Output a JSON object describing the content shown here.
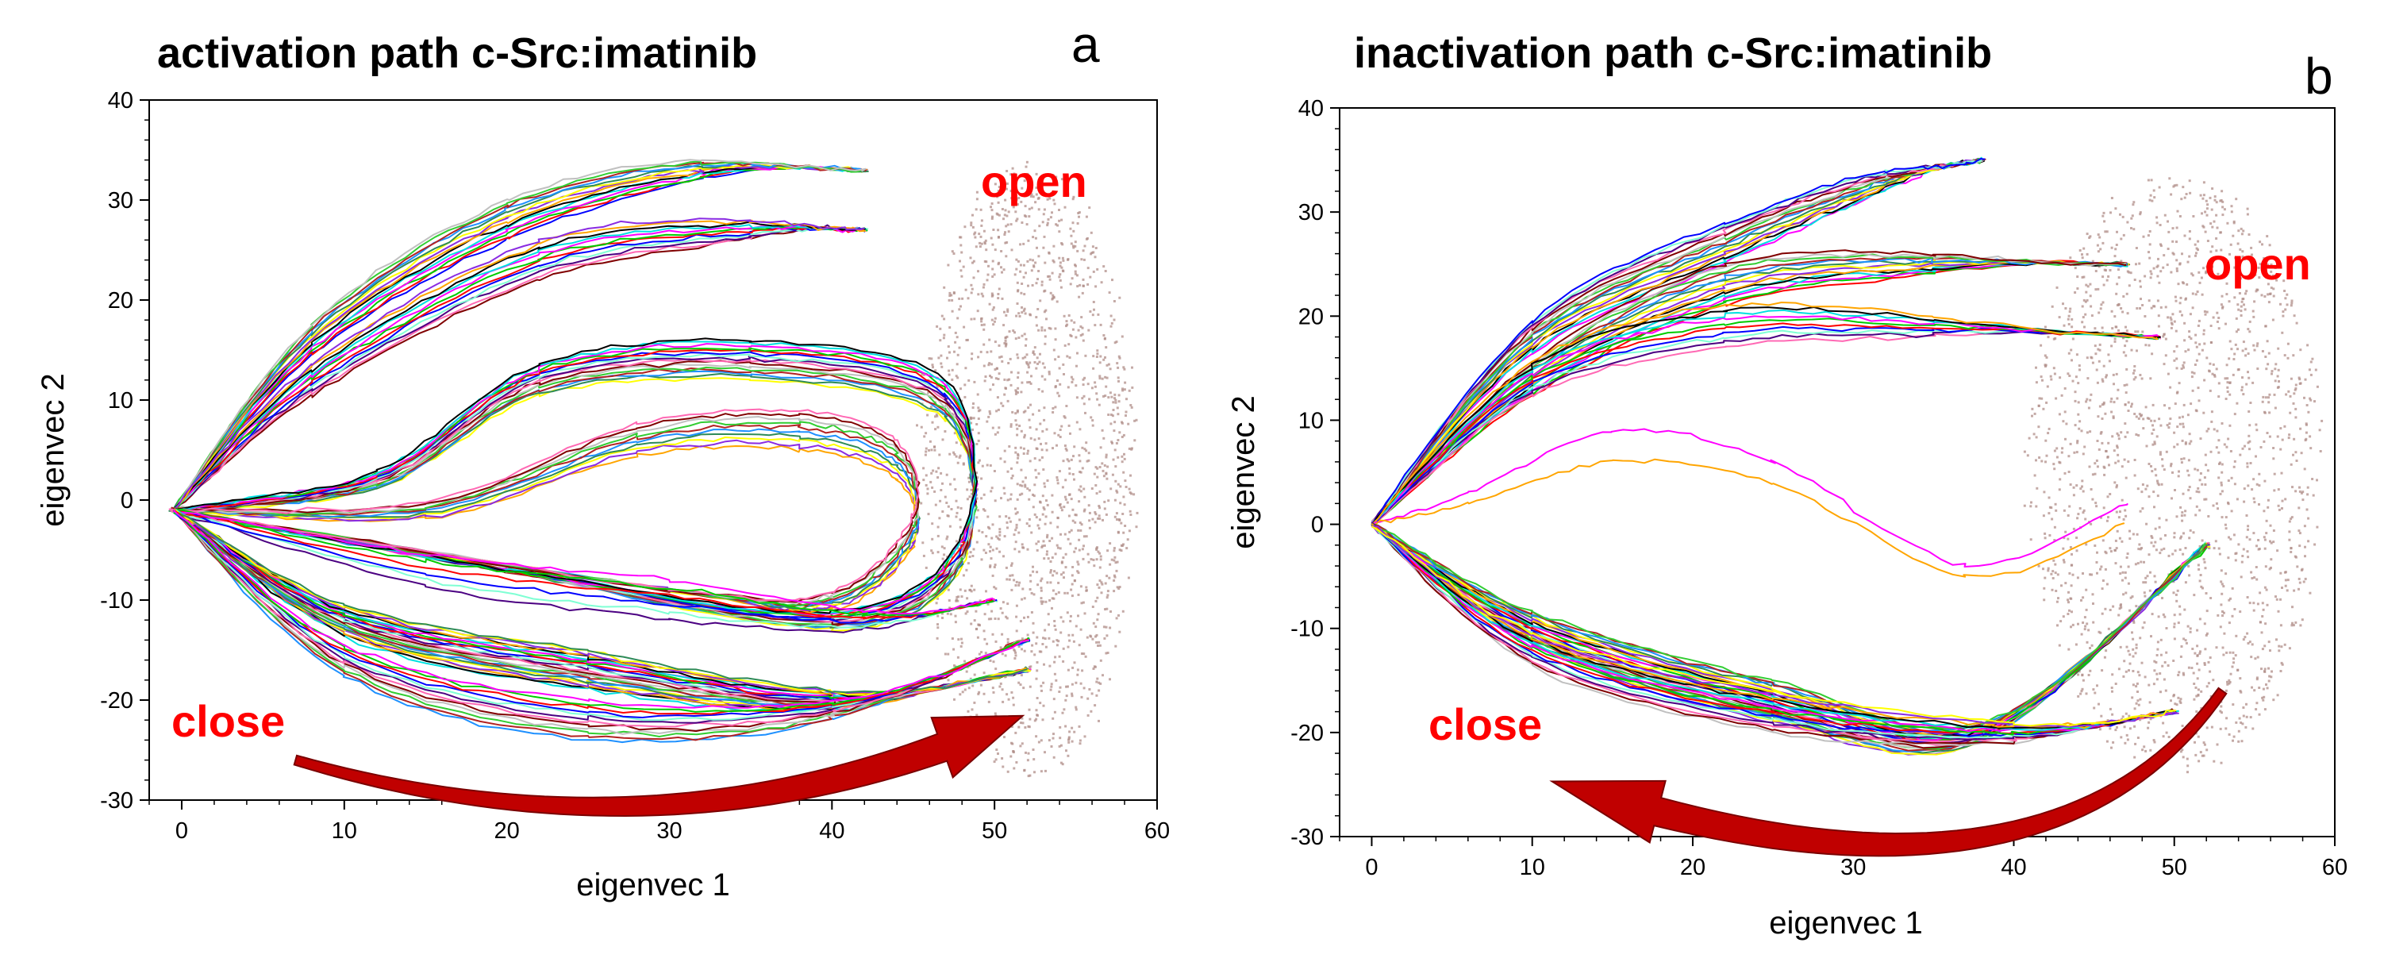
{
  "chart_data": [
    {
      "type": "line",
      "title": "activation path c-Src:imatinib",
      "panel_letter": "a",
      "xlabel": "eigenvec 1",
      "ylabel": "eigenvec 2",
      "xlim": [
        -2,
        60
      ],
      "ylim": [
        -30,
        40
      ],
      "xticks": [
        0,
        10,
        20,
        30,
        40,
        50,
        60
      ],
      "yticks": [
        -30,
        -20,
        -10,
        0,
        10,
        20,
        30,
        40
      ],
      "annotations": [
        {
          "text": "open",
          "x": 52,
          "y": 30
        },
        {
          "text": "close",
          "x": 6,
          "y": -21
        }
      ],
      "arrow": {
        "from": [
          7,
          -26
        ],
        "to": [
          51,
          -22
        ],
        "via": [
          30,
          -37
        ]
      },
      "cloud": {
        "color": "#b08d88",
        "center": [
          52,
          3
        ],
        "radius": [
          6.5,
          31
        ]
      },
      "bundles": [
        {
          "count": 14,
          "points": [
            [
              -0.5,
              -1
            ],
            [
              8,
              16
            ],
            [
              20,
              28
            ],
            [
              32,
              33
            ],
            [
              42,
              33
            ]
          ]
        },
        {
          "count": 12,
          "points": [
            [
              -0.5,
              -1
            ],
            [
              8,
              12
            ],
            [
              22,
              24
            ],
            [
              35,
              27
            ],
            [
              42,
              27
            ]
          ]
        },
        {
          "count": 16,
          "points": [
            [
              -0.5,
              -1
            ],
            [
              12,
              2
            ],
            [
              22,
              12
            ],
            [
              35,
              14
            ],
            [
              47,
              10
            ],
            [
              48,
              -5
            ],
            [
              40,
              -12
            ],
            [
              20,
              -7
            ],
            [
              -0.5,
              -1
            ]
          ]
        },
        {
          "count": 10,
          "points": [
            [
              -0.5,
              -1
            ],
            [
              15,
              -1
            ],
            [
              28,
              6
            ],
            [
              38,
              7
            ],
            [
              44,
              4
            ],
            [
              45,
              -3
            ],
            [
              40,
              -10
            ],
            [
              30,
              -9
            ],
            [
              -0.5,
              -1
            ]
          ]
        },
        {
          "count": 6,
          "points": [
            [
              -0.5,
              -1
            ],
            [
              15,
              -7
            ],
            [
              30,
              -10
            ],
            [
              42,
              -12
            ],
            [
              50,
              -10
            ]
          ]
        },
        {
          "count": 24,
          "points": [
            [
              -0.5,
              -1
            ],
            [
              10,
              -12
            ],
            [
              25,
              -17
            ],
            [
              40,
              -20
            ],
            [
              52,
              -17
            ]
          ]
        },
        {
          "count": 12,
          "points": [
            [
              -0.5,
              -1
            ],
            [
              10,
              -16
            ],
            [
              25,
              -22
            ],
            [
              40,
              -21
            ],
            [
              52,
              -14
            ]
          ]
        }
      ]
    },
    {
      "type": "line",
      "title": "inactivation path c-Src:imatinib",
      "panel_letter": "b",
      "xlabel": "eigenvec 1",
      "ylabel": "eigenvec 2",
      "xlim": [
        -2,
        60
      ],
      "ylim": [
        -30,
        40
      ],
      "xticks": [
        0,
        10,
        20,
        30,
        40,
        50,
        60
      ],
      "yticks": [
        -30,
        -20,
        -10,
        0,
        10,
        20,
        30,
        40
      ],
      "annotations": [
        {
          "text": "open",
          "x": 51,
          "y": 25
        },
        {
          "text": "close",
          "x": 3,
          "y": -19
        }
      ],
      "arrow": {
        "from": [
          53,
          -16
        ],
        "to": [
          12,
          -25
        ],
        "via": [
          42,
          -40
        ]
      },
      "cloud": {
        "color": "#b08d88",
        "center": [
          50,
          5
        ],
        "radius": [
          9,
          29
        ]
      },
      "bundles": [
        {
          "count": 16,
          "points": [
            [
              0,
              0
            ],
            [
              10,
              18
            ],
            [
              22,
              27
            ],
            [
              32,
              33
            ],
            [
              38,
              35
            ]
          ]
        },
        {
          "count": 14,
          "points": [
            [
              0,
              0
            ],
            [
              10,
              14
            ],
            [
              22,
              23
            ],
            [
              35,
              25
            ],
            [
              47,
              25
            ]
          ]
        },
        {
          "count": 10,
          "points": [
            [
              0,
              0
            ],
            [
              10,
              14
            ],
            [
              22,
              19
            ],
            [
              35,
              19
            ],
            [
              49,
              18
            ]
          ]
        },
        {
          "count": 1,
          "color": "#ff00ff",
          "points": [
            [
              0,
              0
            ],
            [
              6,
              3
            ],
            [
              15,
              9
            ],
            [
              25,
              6
            ],
            [
              37,
              -4
            ],
            [
              47,
              2
            ]
          ]
        },
        {
          "count": 1,
          "color": "#ffa500",
          "points": [
            [
              0,
              0
            ],
            [
              6,
              2
            ],
            [
              15,
              6
            ],
            [
              25,
              4
            ],
            [
              37,
              -5
            ],
            [
              47,
              0
            ]
          ]
        },
        {
          "count": 24,
          "points": [
            [
              0,
              0
            ],
            [
              10,
              -10
            ],
            [
              25,
              -17
            ],
            [
              38,
              -20
            ],
            [
              52,
              -2
            ]
          ]
        },
        {
          "count": 14,
          "points": [
            [
              0,
              0
            ],
            [
              10,
              -12
            ],
            [
              25,
              -18
            ],
            [
              40,
              -20
            ],
            [
              50,
              -18
            ]
          ]
        }
      ]
    }
  ]
}
